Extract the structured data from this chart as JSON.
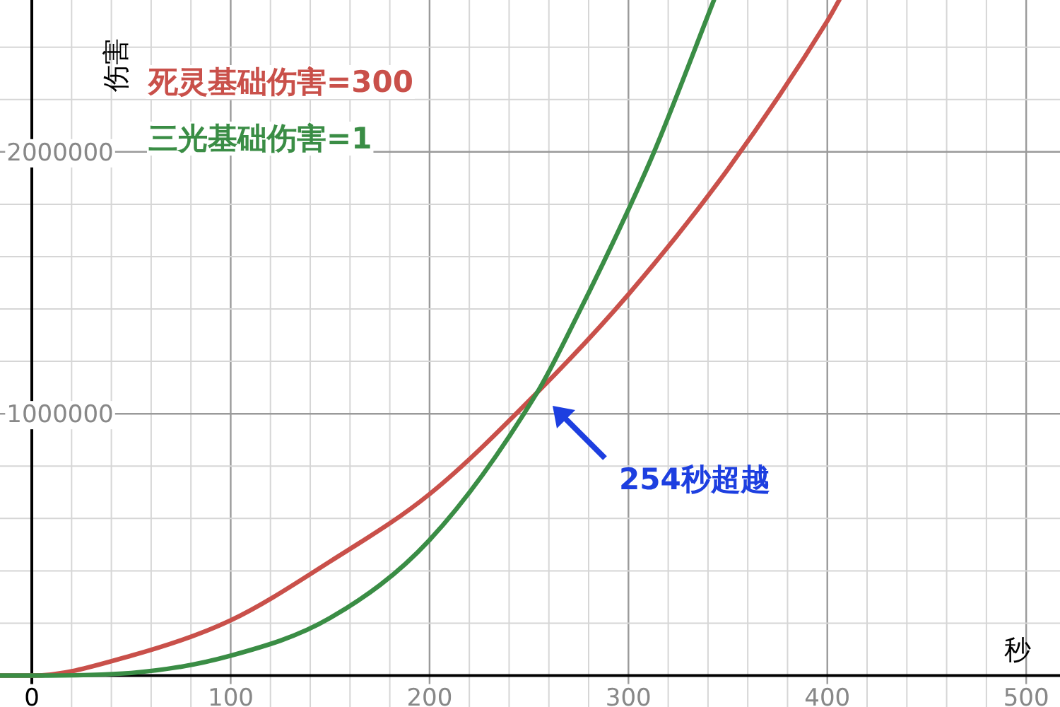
{
  "chart_data": {
    "type": "line",
    "xlabel": "秒",
    "ylabel": "伤害",
    "annotations": [
      "254秒超越"
    ],
    "series": [
      {
        "name": "死灵基础伤害=300",
        "color": "#c9504a",
        "x": [
          -16,
          0,
          50,
          100,
          150,
          200,
          254,
          300,
          350,
          400,
          406
        ],
        "values": [
          0,
          0,
          76000,
          211000,
          436000,
          693000,
          1080000,
          1456000,
          1934000,
          2500000,
          2580000
        ]
      },
      {
        "name": "三光基础伤害=1",
        "color": "#3a8d45",
        "x": [
          -16,
          0,
          50,
          100,
          150,
          200,
          254,
          274,
          300,
          314,
          343
        ],
        "values": [
          0,
          0,
          10000,
          76000,
          220000,
          518000,
          1080000,
          1370000,
          1780000,
          2020000,
          2580000
        ]
      }
    ],
    "xlim": [
      -16,
      517
    ],
    "ylim": [
      -120000,
      2580000
    ],
    "xticks": [
      {
        "value": 0,
        "label": "0"
      },
      {
        "value": 20,
        "label": null
      },
      {
        "value": 40,
        "label": null
      },
      {
        "value": 60,
        "label": null
      },
      {
        "value": 80,
        "label": null
      },
      100,
      {
        "value": 120,
        "label": null
      },
      {
        "value": 140,
        "label": null
      },
      {
        "value": 160,
        "label": null
      },
      {
        "value": 180,
        "label": null
      },
      200,
      {
        "value": 220,
        "label": null
      },
      {
        "value": 240,
        "label": null
      },
      {
        "value": 260,
        "label": null
      },
      {
        "value": 280,
        "label": null
      },
      300,
      {
        "value": 320,
        "label": null
      },
      {
        "value": 340,
        "label": null
      },
      {
        "value": 360,
        "label": null
      },
      {
        "value": 380,
        "label": null
      },
      400,
      {
        "value": 420,
        "label": null
      },
      {
        "value": 440,
        "label": null
      },
      {
        "value": 460,
        "label": null
      },
      {
        "value": 480,
        "label": null
      },
      500
    ],
    "yticks": [
      {
        "value": 200000,
        "label": null
      },
      {
        "value": 400000,
        "label": null
      },
      {
        "value": 600000,
        "label": null
      },
      {
        "value": 800000,
        "label": null
      },
      1000000,
      {
        "value": 1200000,
        "label": null
      },
      {
        "value": 1400000,
        "label": null
      },
      {
        "value": 1600000,
        "label": null
      },
      {
        "value": 1800000,
        "label": null
      },
      2000000,
      {
        "value": 2200000,
        "label": null
      },
      {
        "value": 2400000,
        "label": null
      }
    ],
    "grid": true,
    "legend": "top left"
  }
}
